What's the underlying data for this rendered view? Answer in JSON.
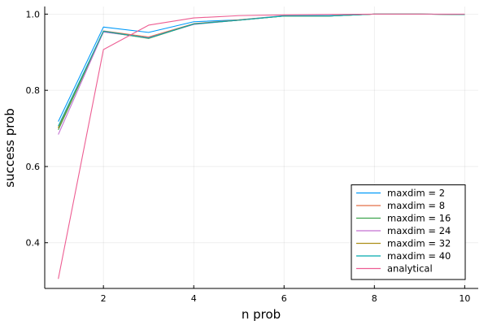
{
  "chart_data": {
    "type": "line",
    "title": "",
    "xlabel": "n prob",
    "ylabel": "success prob",
    "xlim": [
      0.7,
      10.3
    ],
    "ylim": [
      0.28,
      1.02
    ],
    "xticks": [
      2,
      4,
      6,
      8,
      10
    ],
    "yticks": [
      0.4,
      0.6,
      0.8,
      1.0
    ],
    "ytick_labels": [
      "0.4",
      "0.6",
      "0.8",
      "1.0"
    ],
    "grid": true,
    "legend_position": "bottom-right",
    "x": [
      1,
      2,
      3,
      4,
      5,
      6,
      7,
      8,
      9,
      10
    ],
    "series": [
      {
        "name": "maxdim = 2",
        "color": "#009AFA",
        "values": [
          0.718,
          0.966,
          0.952,
          0.98,
          0.985,
          0.996,
          0.996,
          1.0,
          1.0,
          0.999
        ]
      },
      {
        "name": "maxdim = 8",
        "color": "#E36F47",
        "values": [
          0.7,
          0.956,
          0.94,
          0.975,
          0.985,
          0.995,
          0.995,
          1.0,
          1.0,
          0.999
        ]
      },
      {
        "name": "maxdim = 16",
        "color": "#3EA44E",
        "values": [
          0.696,
          0.954,
          0.937,
          0.974,
          0.984,
          0.995,
          0.995,
          1.0,
          1.0,
          0.999
        ]
      },
      {
        "name": "maxdim = 24",
        "color": "#C371D2",
        "values": [
          0.684,
          0.953,
          0.938,
          0.973,
          0.984,
          0.995,
          0.995,
          1.0,
          1.0,
          0.999
        ]
      },
      {
        "name": "maxdim = 32",
        "color": "#AC8E18",
        "values": [
          0.702,
          0.955,
          0.936,
          0.974,
          0.984,
          0.995,
          0.995,
          1.0,
          1.0,
          0.999
        ]
      },
      {
        "name": "maxdim = 40",
        "color": "#00AAAE",
        "values": [
          0.706,
          0.955,
          0.937,
          0.974,
          0.984,
          0.995,
          0.995,
          1.0,
          1.0,
          0.999
        ]
      },
      {
        "name": "analytical",
        "color": "#ED5D92",
        "values": [
          0.305,
          0.907,
          0.971,
          0.99,
          0.996,
          0.998,
          0.999,
          1.0,
          1.0,
          1.0
        ]
      }
    ]
  }
}
